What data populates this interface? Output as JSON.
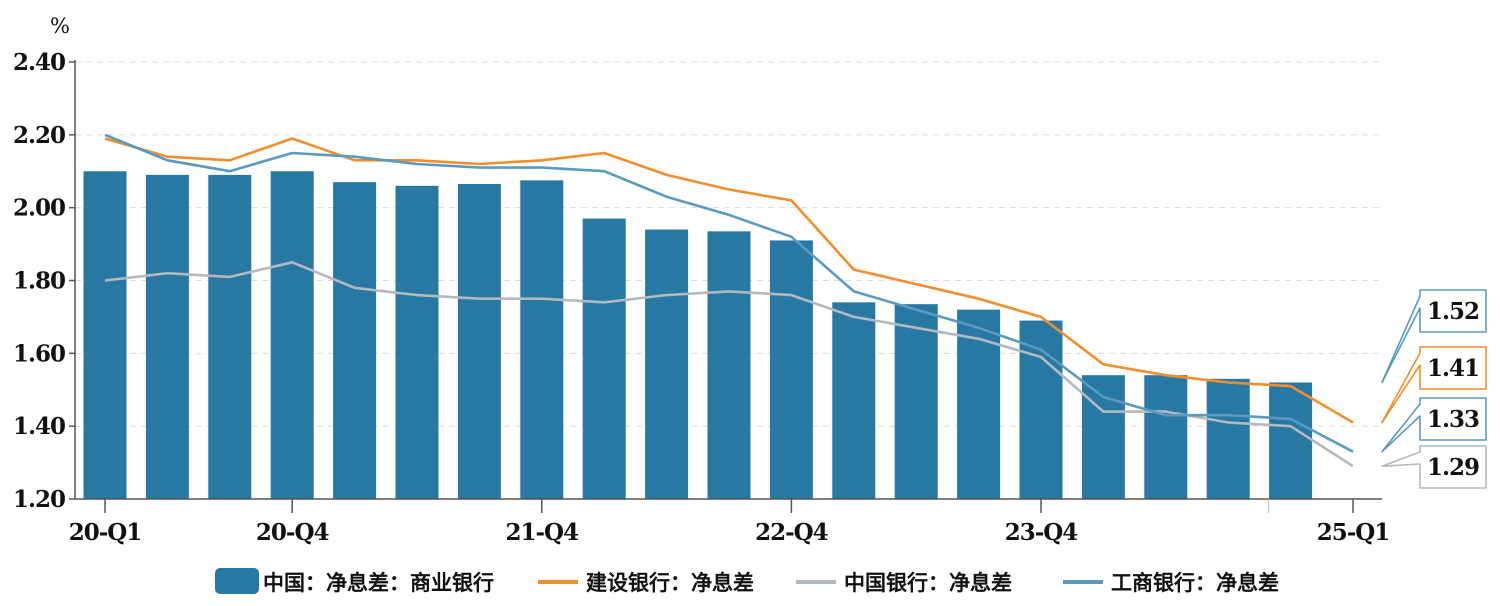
{
  "chart_data": {
    "type": "bar",
    "ylabel": "%",
    "ylim": [
      1.2,
      2.4
    ],
    "yticks": [
      "1.20",
      "1.40",
      "1.60",
      "1.80",
      "2.00",
      "2.20",
      "2.40"
    ],
    "x_tick_labels": [
      {
        "index": 0,
        "label": "20-Q1"
      },
      {
        "index": 3,
        "label": "20-Q4"
      },
      {
        "index": 7,
        "label": "21-Q4"
      },
      {
        "index": 11,
        "label": "22-Q4"
      },
      {
        "index": 15,
        "label": "23-Q4"
      },
      {
        "index": 20,
        "label": "25-Q1"
      }
    ],
    "grid": true,
    "legend_position": "bottom",
    "series": [
      {
        "name": "中国：净息差：商业银行",
        "type": "bar",
        "color": "#2878a4",
        "values": [
          2.1,
          2.09,
          2.09,
          2.1,
          2.07,
          2.06,
          2.065,
          2.075,
          1.97,
          1.94,
          1.935,
          1.91,
          1.74,
          1.735,
          1.72,
          1.69,
          1.54,
          1.54,
          1.53,
          1.52,
          null
        ]
      },
      {
        "name": "建设银行：净息差",
        "type": "line",
        "color": "#f28e2b",
        "values": [
          2.19,
          2.14,
          2.13,
          2.19,
          2.13,
          2.13,
          2.12,
          2.13,
          2.15,
          2.09,
          2.05,
          2.02,
          1.83,
          1.79,
          1.75,
          1.7,
          1.57,
          1.54,
          1.52,
          1.51,
          1.41
        ]
      },
      {
        "name": "中国银行：净息差",
        "type": "line",
        "color": "#b4b9c0",
        "values": [
          1.8,
          1.82,
          1.81,
          1.85,
          1.78,
          1.76,
          1.75,
          1.75,
          1.74,
          1.76,
          1.77,
          1.76,
          1.7,
          1.67,
          1.64,
          1.59,
          1.44,
          1.44,
          1.41,
          1.4,
          1.29
        ]
      },
      {
        "name": "工商银行：净息差",
        "type": "line",
        "color": "#5b9abf",
        "values": [
          2.2,
          2.13,
          2.1,
          2.15,
          2.14,
          2.12,
          2.11,
          2.11,
          2.1,
          2.03,
          1.98,
          1.92,
          1.77,
          1.72,
          1.67,
          1.61,
          1.48,
          1.43,
          1.43,
          1.42,
          1.33
        ]
      }
    ],
    "end_labels": [
      {
        "text": "1.52",
        "series": 0,
        "border": "#5b9abf"
      },
      {
        "text": "1.41",
        "series": 1,
        "border": "#f28e2b"
      },
      {
        "text": "1.33",
        "series": 3,
        "border": "#5b9abf"
      },
      {
        "text": "1.29",
        "series": 2,
        "border": "#b4b9c0"
      }
    ]
  }
}
